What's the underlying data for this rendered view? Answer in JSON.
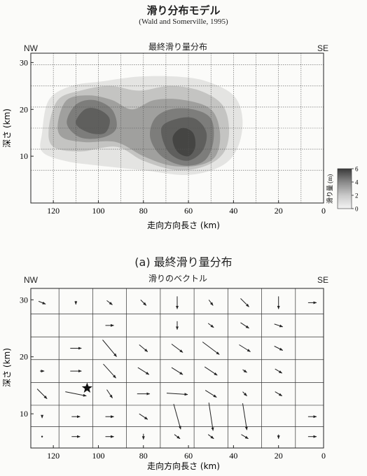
{
  "header": {
    "title": "滑り分布モデル",
    "citation": "(Wald and Somerville, 1995)"
  },
  "panel_a": {
    "title": "最終滑り量分布",
    "left_label": "NW",
    "right_label": "SE",
    "xlabel": "走向方向長さ (km)",
    "ylabel": "深さ (km)",
    "caption": "(a) 最終滑り量分布",
    "colorbar_label": "滑り量 (m)",
    "colorbar_ticks": [
      "6",
      "4",
      "2",
      "0"
    ]
  },
  "panel_b": {
    "title": "滑りのベクトル",
    "left_label": "NW",
    "right_label": "SE",
    "xlabel": "走向方向長さ (km)",
    "ylabel": "深さ (km)"
  },
  "chart_data": [
    {
      "type": "heatmap",
      "title": "最終滑り量分布",
      "xlabel": "走向方向長さ (km)",
      "ylabel": "深さ (km)",
      "xlim": [
        130,
        0
      ],
      "ylim": [
        0,
        32
      ],
      "x_ticks": [
        120,
        100,
        80,
        60,
        40,
        20,
        0
      ],
      "y_ticks": [
        10,
        20,
        30
      ],
      "colorbar": {
        "label": "滑り量 (m)",
        "range": [
          0,
          6
        ],
        "ticks": [
          0,
          2,
          4,
          6
        ]
      },
      "contours": [
        {
          "slip": 1,
          "points": [
            [
              125,
              15
            ],
            [
              122,
              22
            ],
            [
              112,
              25
            ],
            [
              98,
              26
            ],
            [
              82,
              27
            ],
            [
              65,
              27
            ],
            [
              52,
              26
            ],
            [
              40,
              23
            ],
            [
              36,
              18
            ],
            [
              38,
              12
            ],
            [
              45,
              8
            ],
            [
              60,
              6
            ],
            [
              80,
              7
            ],
            [
              100,
              8
            ],
            [
              115,
              9
            ],
            [
              125,
              11
            ]
          ]
        },
        {
          "slip": 2,
          "points": [
            [
              122,
              16
            ],
            [
              118,
              22
            ],
            [
              108,
              24
            ],
            [
              95,
              25
            ],
            [
              82,
              24
            ],
            [
              68,
              25
            ],
            [
              55,
              24
            ],
            [
              45,
              21
            ],
            [
              42,
              16
            ],
            [
              44,
              11
            ],
            [
              52,
              8
            ],
            [
              65,
              7
            ],
            [
              80,
              9
            ],
            [
              92,
              12
            ],
            [
              108,
              11
            ],
            [
              120,
              12
            ]
          ]
        },
        {
          "slip": 3,
          "points": [
            [
              118,
              17
            ],
            [
              114,
              22
            ],
            [
              104,
              23
            ],
            [
              94,
              22
            ],
            [
              85,
              20
            ],
            [
              75,
              22
            ],
            [
              62,
              22
            ],
            [
              50,
              20
            ],
            [
              46,
              15
            ],
            [
              48,
              10
            ],
            [
              56,
              8
            ],
            [
              68,
              8
            ],
            [
              80,
              10
            ],
            [
              92,
              13
            ],
            [
              106,
              13
            ],
            [
              116,
              14
            ]
          ]
        },
        {
          "slip": 4,
          "points": [
            [
              114,
              17
            ],
            [
              110,
              21
            ],
            [
              102,
              22
            ],
            [
              94,
              20
            ],
            [
              92,
              16
            ],
            [
              98,
              14
            ],
            [
              108,
              14
            ]
          ]
        },
        {
          "slip": 4,
          "points": [
            [
              75,
              18
            ],
            [
              68,
              20
            ],
            [
              58,
              20
            ],
            [
              50,
              18
            ],
            [
              49,
              13
            ],
            [
              53,
              9
            ],
            [
              62,
              8
            ],
            [
              72,
              10
            ],
            [
              77,
              14
            ]
          ]
        },
        {
          "slip": 5,
          "points": [
            [
              110,
              17
            ],
            [
              106,
              20
            ],
            [
              100,
              20
            ],
            [
              95,
              18
            ],
            [
              97,
              15
            ],
            [
              104,
              15
            ]
          ]
        },
        {
          "slip": 5,
          "points": [
            [
              72,
              16
            ],
            [
              65,
              18
            ],
            [
              57,
              18
            ],
            [
              52,
              15
            ],
            [
              54,
              11
            ],
            [
              61,
              9
            ],
            [
              69,
              11
            ]
          ]
        },
        {
          "slip": 6,
          "points": [
            [
              67,
              14
            ],
            [
              63,
              16
            ],
            [
              58,
              15
            ],
            [
              57,
              12
            ],
            [
              60,
              10
            ],
            [
              65,
              11
            ]
          ]
        }
      ]
    },
    {
      "type": "scatter",
      "title": "滑りのベクトル",
      "xlabel": "走向方向長さ (km)",
      "ylabel": "深さ (km)",
      "xlim": [
        130,
        0
      ],
      "ylim": [
        4,
        32
      ],
      "x_ticks": [
        120,
        100,
        80,
        60,
        40,
        20,
        0
      ],
      "y_ticks": [
        10,
        20,
        30
      ],
      "hypocenter": {
        "x": 105,
        "y": 14.5
      },
      "vectors": [
        {
          "x": 125,
          "y": 29.5,
          "dx": 0.5,
          "dy": -0.2
        },
        {
          "x": 110,
          "y": 29.5,
          "dx": 0,
          "dy": -0.25
        },
        {
          "x": 95,
          "y": 29.5,
          "dx": 0.4,
          "dy": -0.3
        },
        {
          "x": 80,
          "y": 29.5,
          "dx": 0.4,
          "dy": -0.4
        },
        {
          "x": 65,
          "y": 29.5,
          "dx": 0,
          "dy": -0.9
        },
        {
          "x": 50,
          "y": 29.5,
          "dx": 0.3,
          "dy": -0.4
        },
        {
          "x": 35,
          "y": 29.5,
          "dx": 0.6,
          "dy": -0.6
        },
        {
          "x": 20,
          "y": 29.5,
          "dx": 0,
          "dy": -0.9
        },
        {
          "x": 5,
          "y": 29.5,
          "dx": 0.6,
          "dy": 0
        },
        {
          "x": 95,
          "y": 25.5,
          "dx": 0.6,
          "dy": 0
        },
        {
          "x": 65,
          "y": 25.5,
          "dx": 0,
          "dy": -0.6
        },
        {
          "x": 50,
          "y": 25.5,
          "dx": 0.4,
          "dy": -0.3
        },
        {
          "x": 35,
          "y": 25.5,
          "dx": 0.6,
          "dy": -0.4
        },
        {
          "x": 20,
          "y": 25.5,
          "dx": 0.6,
          "dy": -0.2
        },
        {
          "x": 110,
          "y": 21.5,
          "dx": 0.8,
          "dy": 0
        },
        {
          "x": 95,
          "y": 21.5,
          "dx": 1,
          "dy": -1.2
        },
        {
          "x": 80,
          "y": 21.5,
          "dx": 0.6,
          "dy": -0.5
        },
        {
          "x": 65,
          "y": 21.5,
          "dx": 0.8,
          "dy": -0.6
        },
        {
          "x": 50,
          "y": 21.5,
          "dx": 1.2,
          "dy": -0.9
        },
        {
          "x": 35,
          "y": 21.5,
          "dx": 0.8,
          "dy": -0.5
        },
        {
          "x": 20,
          "y": 21.5,
          "dx": 0.6,
          "dy": -0.3
        },
        {
          "x": 125,
          "y": 17.5,
          "dx": 0.3,
          "dy": 0
        },
        {
          "x": 110,
          "y": 17.5,
          "dx": 0.8,
          "dy": 0
        },
        {
          "x": 95,
          "y": 17.5,
          "dx": 0.9,
          "dy": -1
        },
        {
          "x": 80,
          "y": 17.5,
          "dx": 0.8,
          "dy": -0.5
        },
        {
          "x": 65,
          "y": 17.5,
          "dx": 0.8,
          "dy": -0.5
        },
        {
          "x": 50,
          "y": 17.5,
          "dx": 0.9,
          "dy": -0.6
        },
        {
          "x": 35,
          "y": 17.5,
          "dx": 0.3,
          "dy": -0.2
        },
        {
          "x": 20,
          "y": 17.5,
          "dx": 0.5,
          "dy": -0.3
        },
        {
          "x": 125,
          "y": 13.5,
          "dx": 0.7,
          "dy": -0.7
        },
        {
          "x": 110,
          "y": 13.5,
          "dx": 1.5,
          "dy": -0.3
        },
        {
          "x": 95,
          "y": 13.5,
          "dx": 0.4,
          "dy": -0.6
        },
        {
          "x": 80,
          "y": 13.5,
          "dx": 0.9,
          "dy": 0
        },
        {
          "x": 65,
          "y": 13.5,
          "dx": 1.5,
          "dy": -0.1
        },
        {
          "x": 50,
          "y": 13.5,
          "dx": 0.8,
          "dy": -0.5
        },
        {
          "x": 35,
          "y": 13.5,
          "dx": 0.3,
          "dy": -0.3
        },
        {
          "x": 20,
          "y": 13.5,
          "dx": 0.5,
          "dy": -0.3
        },
        {
          "x": 125,
          "y": 9.5,
          "dx": 0,
          "dy": -0.2
        },
        {
          "x": 110,
          "y": 9.5,
          "dx": 0.6,
          "dy": 0
        },
        {
          "x": 95,
          "y": 9.5,
          "dx": 0.6,
          "dy": 0
        },
        {
          "x": 80,
          "y": 9.5,
          "dx": 0.6,
          "dy": -0.4
        },
        {
          "x": 65,
          "y": 9.5,
          "dx": 0.5,
          "dy": -1.8
        },
        {
          "x": 50,
          "y": 9.5,
          "dx": 0.3,
          "dy": -2
        },
        {
          "x": 35,
          "y": 9.5,
          "dx": 0.3,
          "dy": -1.9
        },
        {
          "x": 5,
          "y": 9.5,
          "dx": 0.6,
          "dy": 0
        },
        {
          "x": 125,
          "y": 6
        },
        {
          "x": 110,
          "y": 6,
          "dx": 0.6,
          "dy": 0
        },
        {
          "x": 95,
          "y": 6,
          "dx": 0.6,
          "dy": 0
        },
        {
          "x": 80,
          "y": 6,
          "dx": 0,
          "dy": -0.4
        },
        {
          "x": 65,
          "y": 6,
          "dx": 0.4,
          "dy": -0.3
        },
        {
          "x": 50,
          "y": 6,
          "dx": 0.4,
          "dy": -0.3
        },
        {
          "x": 35,
          "y": 6,
          "dx": 0.5,
          "dy": -0.3
        },
        {
          "x": 20,
          "y": 6,
          "dx": 0,
          "dy": -0.3
        },
        {
          "x": 5,
          "y": 6,
          "dx": 0.6,
          "dy": 0
        }
      ]
    }
  ]
}
